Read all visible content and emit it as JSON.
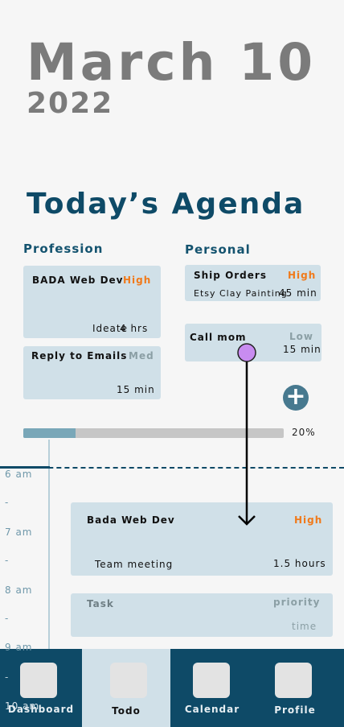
{
  "header": {
    "month_day": "March 10",
    "year": "2022"
  },
  "agenda": {
    "title": "Today’s Agenda"
  },
  "profession": {
    "heading": "Profession",
    "tasks": [
      {
        "name": "BADA Web Dev",
        "priority": "High",
        "detail": "Ideate",
        "duration": "4 hrs"
      },
      {
        "name": "Reply to Emails",
        "priority": "Med",
        "duration": "15 min"
      }
    ]
  },
  "personal": {
    "heading": "Personal",
    "tasks": [
      {
        "name": "Ship Orders",
        "priority": "High",
        "detail": "Etsy Clay Painting",
        "duration": "45 min"
      },
      {
        "name": "Call mom",
        "priority": "Low",
        "duration": "15 min"
      }
    ]
  },
  "add_button": {
    "icon": "plus-icon",
    "glyph": "+"
  },
  "progress": {
    "value": 0.2,
    "label": "20%"
  },
  "timeline": {
    "hours": [
      "6 am",
      "7 am",
      "8 am",
      "9 am",
      "10 am"
    ],
    "half_marker": "-",
    "events": [
      {
        "name": "Bada Web Dev",
        "priority": "High",
        "detail": "Team meeting",
        "duration": "1.5 hours"
      },
      {
        "name": "Task",
        "priority": "priority",
        "duration": "time"
      }
    ]
  },
  "nav": {
    "items": [
      {
        "label": "Dashboard"
      },
      {
        "label": "Todo"
      },
      {
        "label": "Calendar"
      },
      {
        "label": "Profile"
      }
    ],
    "active": "Todo"
  },
  "colors": {
    "primary": "#0e4a67",
    "card": "#d0e0e8",
    "high": "#f07a1b",
    "med": "#8b9fa5",
    "drag_handle": "#c88cf0"
  }
}
